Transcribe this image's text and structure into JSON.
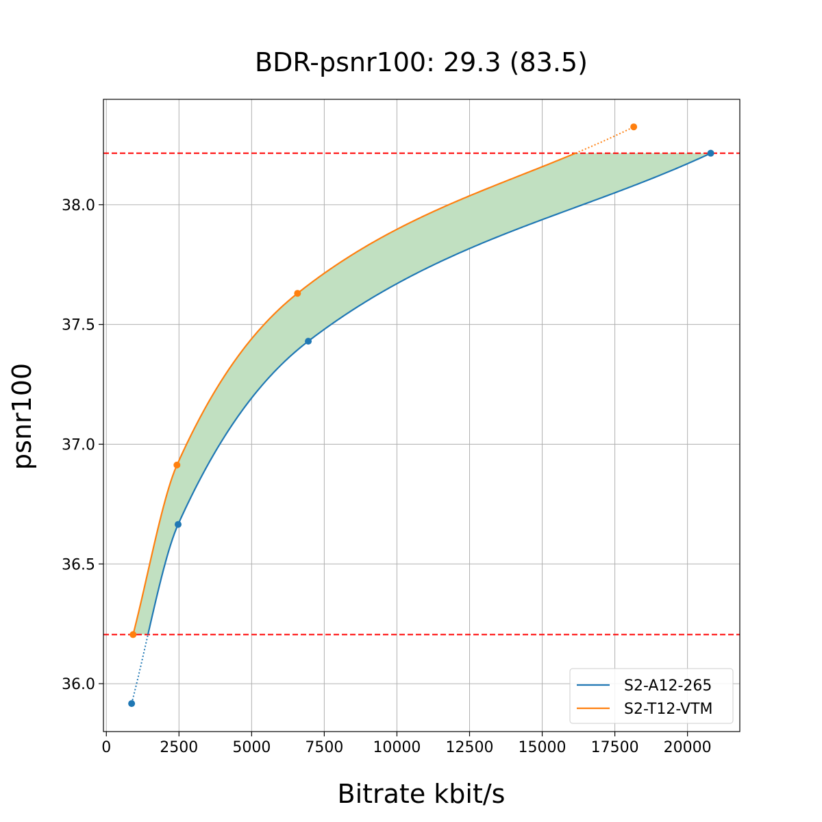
{
  "chart_data": {
    "type": "line",
    "title": "BDR-psnr100: 29.3 (83.5)",
    "xlabel": "Bitrate kbit/s",
    "ylabel": "psnr100",
    "xlim": [
      -100,
      21800
    ],
    "ylim": [
      35.8,
      38.44
    ],
    "xticks": [
      0,
      2500,
      5000,
      7500,
      10000,
      12500,
      15000,
      17500,
      20000
    ],
    "xtick_labels": [
      "0",
      "2500",
      "5000",
      "7500",
      "10000",
      "12500",
      "15000",
      "17500",
      "20000"
    ],
    "yticks": [
      36.0,
      36.5,
      37.0,
      37.5,
      38.0
    ],
    "ytick_labels": [
      "36.0",
      "36.5",
      "37.0",
      "37.5",
      "38.0"
    ],
    "grid": true,
    "legend_position": "lower-right",
    "reference_lines": [
      36.205,
      38.215
    ],
    "series": [
      {
        "name": "S2-A12-265",
        "color": "#1f77b4",
        "points": [
          [
            870,
            35.917
          ],
          [
            2470,
            36.665
          ],
          [
            6950,
            37.43
          ],
          [
            20800,
            38.215
          ]
        ]
      },
      {
        "name": "S2-T12-VTM",
        "color": "#ff7f0e",
        "points": [
          [
            920,
            36.205
          ],
          [
            2430,
            36.913
          ],
          [
            6580,
            37.63
          ],
          [
            18150,
            38.325
          ]
        ]
      }
    ],
    "fill_color": "#c1e0c1",
    "reference_line_color": "#ff0000"
  }
}
